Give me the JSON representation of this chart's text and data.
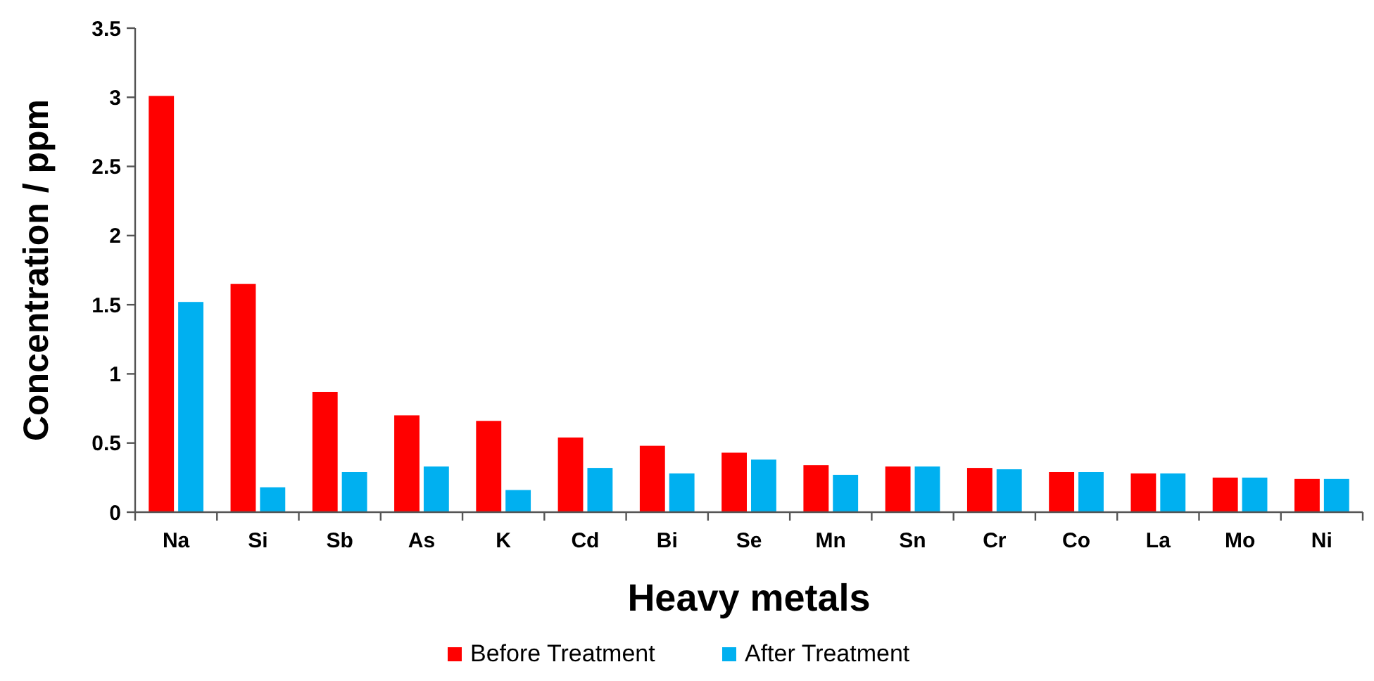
{
  "chart_data": {
    "type": "bar",
    "xlabel": "Heavy metals",
    "ylabel": "Concentration / ppm",
    "categories": [
      "Na",
      "Si",
      "Sb",
      "As",
      "K",
      "Cd",
      "Bi",
      "Se",
      "Mn",
      "Sn",
      "Cr",
      "Co",
      "La",
      "Mo",
      "Ni"
    ],
    "series": [
      {
        "name": "Before Treatment",
        "color": "#ff0000",
        "values": [
          3.01,
          1.65,
          0.87,
          0.7,
          0.66,
          0.54,
          0.48,
          0.43,
          0.34,
          0.33,
          0.32,
          0.29,
          0.28,
          0.25,
          0.24
        ]
      },
      {
        "name": "After Treatment",
        "color": "#00b0f0",
        "values": [
          1.52,
          0.18,
          0.29,
          0.33,
          0.16,
          0.32,
          0.28,
          0.38,
          0.27,
          0.33,
          0.31,
          0.29,
          0.28,
          0.25,
          0.24
        ]
      }
    ],
    "ylim": [
      0,
      3.5
    ],
    "yticks": [
      0,
      0.5,
      1,
      1.5,
      2,
      2.5,
      3,
      3.5
    ],
    "grid": false,
    "legend": "bottom"
  }
}
